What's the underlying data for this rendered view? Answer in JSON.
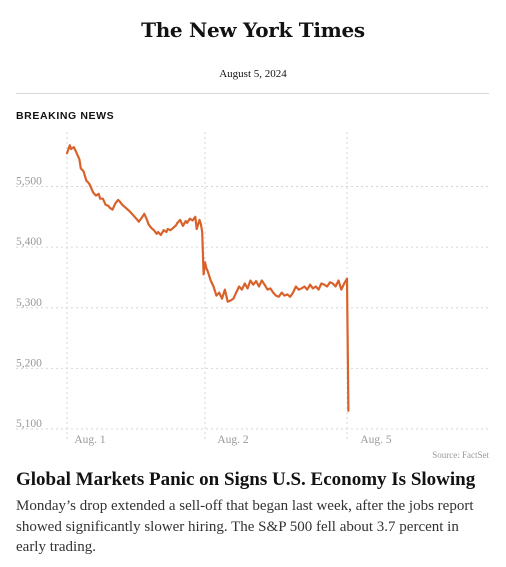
{
  "masthead": "The New York Times",
  "date": "August 5, 2024",
  "kicker": "BREAKING NEWS",
  "headline": "Global Markets Panic on Signs U.S. Economy Is Slowing",
  "summary": "Monday’s drop extended a sell-off that began last week, after the jobs report showed significantly slower hiring. The S&P 500 fell about 3.7 percent in early trading.",
  "source": "Source: FactSet",
  "colors": {
    "line": "#d9622b",
    "grid": "#d6d6d6",
    "tick_text": "#999999"
  },
  "chart_data": {
    "type": "line",
    "title": "",
    "xlabel": "",
    "ylabel": "",
    "ylim": [
      5095,
      5590
    ],
    "yticks": [
      5100,
      5200,
      5300,
      5400,
      5500
    ],
    "ytick_labels": [
      "5,100",
      "5,200",
      "5,300",
      "5,400",
      "5,500"
    ],
    "xticks": [
      0,
      1,
      2
    ],
    "xtick_labels": [
      "Aug. 1",
      "Aug. 2",
      "Aug. 5"
    ],
    "grid": true,
    "series": [
      {
        "x": [
          0.0,
          0.02,
          0.03,
          0.05,
          0.07,
          0.09,
          0.1,
          0.12,
          0.14,
          0.16,
          0.17,
          0.19,
          0.21,
          0.23,
          0.24,
          0.26,
          0.28,
          0.3,
          0.31,
          0.33,
          0.35,
          0.37,
          0.38,
          0.4,
          0.42,
          0.44,
          0.45,
          0.47,
          0.49,
          0.51,
          0.52,
          0.54,
          0.56,
          0.58,
          0.59,
          0.61,
          0.63,
          0.65,
          0.66,
          0.68,
          0.7,
          0.72,
          0.73,
          0.75,
          0.77,
          0.79,
          0.8,
          0.82,
          0.84,
          0.86,
          0.87,
          0.89,
          0.91,
          0.93,
          0.94,
          0.96,
          0.97,
          0.98,
          0.99,
          1.0,
          1.01,
          1.02,
          1.04,
          1.06,
          1.08,
          1.1,
          1.12,
          1.14,
          1.16,
          1.18,
          1.2,
          1.22,
          1.24,
          1.26,
          1.28,
          1.3,
          1.32,
          1.34,
          1.36,
          1.38,
          1.4,
          1.42,
          1.44,
          1.46,
          1.48,
          1.5,
          1.52,
          1.54,
          1.56,
          1.58,
          1.6,
          1.62,
          1.64,
          1.66,
          1.68,
          1.7,
          1.72,
          1.74,
          1.76,
          1.78,
          1.8,
          1.82,
          1.84,
          1.86,
          1.88,
          1.9,
          1.92,
          1.94,
          1.96,
          1.98,
          2.0,
          2.01
        ],
        "values": [
          5555,
          5568,
          5562,
          5565,
          5555,
          5545,
          5530,
          5525,
          5510,
          5505,
          5500,
          5490,
          5485,
          5488,
          5480,
          5480,
          5470,
          5468,
          5465,
          5462,
          5472,
          5478,
          5476,
          5470,
          5466,
          5462,
          5460,
          5455,
          5450,
          5445,
          5442,
          5448,
          5455,
          5445,
          5438,
          5432,
          5428,
          5422,
          5425,
          5420,
          5428,
          5425,
          5430,
          5428,
          5432,
          5436,
          5440,
          5445,
          5435,
          5443,
          5440,
          5447,
          5444,
          5450,
          5430,
          5445,
          5438,
          5425,
          5355,
          5375,
          5365,
          5360,
          5345,
          5335,
          5320,
          5325,
          5315,
          5330,
          5310,
          5312,
          5315,
          5325,
          5335,
          5330,
          5340,
          5332,
          5345,
          5338,
          5344,
          5335,
          5345,
          5338,
          5330,
          5332,
          5325,
          5320,
          5318,
          5325,
          5320,
          5322,
          5318,
          5325,
          5335,
          5330,
          5332,
          5335,
          5330,
          5338,
          5332,
          5335,
          5330,
          5340,
          5338,
          5335,
          5342,
          5340,
          5335,
          5345,
          5330,
          5340,
          5348,
          5130
        ]
      }
    ]
  }
}
